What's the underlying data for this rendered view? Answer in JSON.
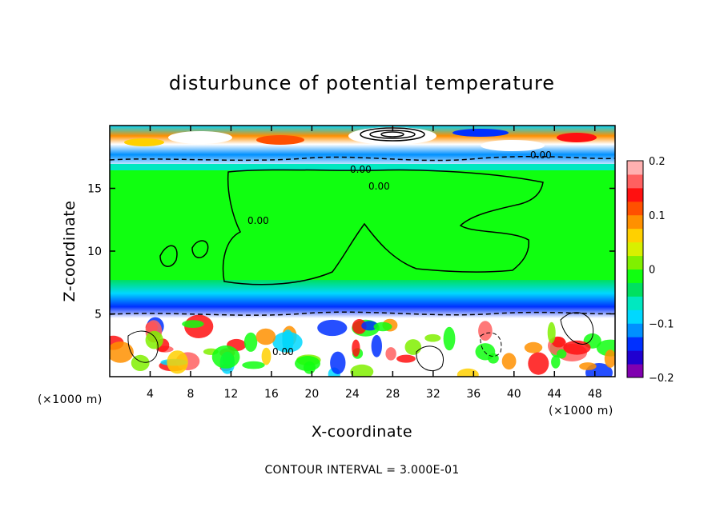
{
  "chart_data": {
    "type": "heatmap",
    "title": "disturbunce of potential temperature",
    "xlabel": "X-coordinate",
    "ylabel": "Z-coordinate",
    "x_unit": "(×1000 m)",
    "y_unit": "(×1000 m)",
    "xlim": [
      0,
      50
    ],
    "ylim": [
      0,
      20
    ],
    "x_ticks": [
      4,
      8,
      12,
      16,
      20,
      24,
      28,
      32,
      36,
      40,
      44,
      48
    ],
    "y_ticks": [
      5,
      10,
      15
    ],
    "colorbar": {
      "range": [
        -0.2,
        0.2
      ],
      "tick_values": [
        0.2,
        0.1,
        0,
        -0.1,
        -0.2
      ],
      "tick_labels": [
        "0.2",
        "0.1",
        "0",
        "−0.1",
        "−0.2"
      ],
      "colors": [
        "#8000b0",
        "#2000d0",
        "#0030ff",
        "#0090ff",
        "#00d8ff",
        "#00e8c0",
        "#00e060",
        "#10ff10",
        "#80f000",
        "#d8f000",
        "#ffd000",
        "#ff9000",
        "#ff5000",
        "#ff1010",
        "#ff6060",
        "#ffb0b0"
      ]
    },
    "contour_labels": [
      "0.00",
      "0.00",
      "0.00",
      "0.00",
      "0.00"
    ],
    "footer": "CONTOUR INTERVAL = 3.000E-01"
  }
}
